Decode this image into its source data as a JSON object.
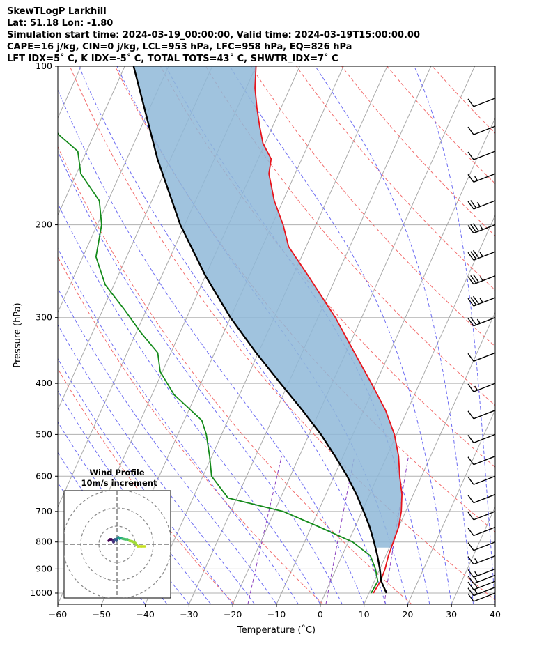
{
  "header": {
    "line1": "SkewTLogP Larkhill",
    "line2": "Lat: 51.18   Lon: -1.80",
    "line3": "Simulation start time: 2024-03-19_00:00:00, Valid time: 2024-03-19T15:00:00.00",
    "line4": "CAPE=16 j/kg, CIN=0 j/kg, LCL=953 hPa, LFC=958 hPa, EQ=826 hPa",
    "line5": "LFT IDX=5˚ C, K IDX=-5˚ C, TOTAL TOTS=43˚ C, SHWTR_IDX=7˚ C"
  },
  "chart_data": {
    "type": "skew-t log-p",
    "xlabel": "Temperature (˚C)",
    "ylabel": "Pressure (hPa)",
    "xlim": [
      -60,
      40
    ],
    "ylim": [
      1050,
      100
    ],
    "x_ticks": [
      "−60",
      "−50",
      "−40",
      "−30",
      "−20",
      "−10",
      "0",
      "10",
      "20",
      "30",
      "40"
    ],
    "y_ticks": [
      "100",
      "200",
      "300",
      "400",
      "500",
      "600",
      "700",
      "800",
      "900",
      "1000"
    ],
    "y_tick_values": [
      100,
      200,
      300,
      400,
      500,
      600,
      700,
      800,
      900,
      1000
    ],
    "log_pressure_axis": true,
    "grid": true,
    "colors": {
      "temperature": "#e8141c",
      "dewpoint": "#138a1a",
      "parcel": "#000000",
      "cape_fill": "#8fb8d8",
      "dry_adiabats": "#f26b6b",
      "moist_adiabats": "#6b6bf2",
      "mixing_ratio": "#8a3fbf",
      "isotherms": "#a9a9a9"
    },
    "series": [
      {
        "role": "temperature",
        "points": [
          [
            1000,
            11
          ],
          [
            950,
            11.4
          ],
          [
            900,
            11.2
          ],
          [
            850,
            10.6
          ],
          [
            800,
            10.3
          ],
          [
            750,
            10.0
          ],
          [
            700,
            9.0
          ],
          [
            650,
            7.4
          ],
          [
            600,
            5.0
          ],
          [
            550,
            2.7
          ],
          [
            500,
            -0.5
          ],
          [
            450,
            -5.0
          ],
          [
            400,
            -11.0
          ],
          [
            350,
            -18.0
          ],
          [
            300,
            -26.0
          ],
          [
            250,
            -36.5
          ],
          [
            220,
            -44.0
          ],
          [
            200,
            -47.5
          ],
          [
            180,
            -52.0
          ],
          [
            160,
            -56.0
          ],
          [
            150,
            -57.0
          ],
          [
            140,
            -60.5
          ],
          [
            130,
            -63.0
          ],
          [
            120,
            -65.5
          ],
          [
            110,
            -68.0
          ],
          [
            100,
            -70.0
          ]
        ]
      },
      {
        "role": "dewpoint",
        "points": [
          [
            1000,
            10.5
          ],
          [
            950,
            10.8
          ],
          [
            900,
            9.0
          ],
          [
            850,
            6.5
          ],
          [
            800,
            1.0
          ],
          [
            750,
            -8.0
          ],
          [
            700,
            -18.0
          ],
          [
            660,
            -32.0
          ],
          [
            600,
            -38.0
          ],
          [
            550,
            -40.5
          ],
          [
            500,
            -43.5
          ],
          [
            470,
            -46.0
          ],
          [
            420,
            -55.0
          ],
          [
            380,
            -60.5
          ],
          [
            350,
            -63.0
          ],
          [
            320,
            -69.0
          ],
          [
            290,
            -75.0
          ],
          [
            260,
            -82.0
          ],
          [
            230,
            -87.0
          ],
          [
            200,
            -89.0
          ],
          [
            180,
            -92.0
          ],
          [
            160,
            -99.0
          ],
          [
            145,
            -102.0
          ],
          [
            135,
            -108.0
          ],
          [
            120,
            -115.0
          ],
          [
            100,
            -128.0
          ]
        ]
      },
      {
        "role": "parcel",
        "points": [
          [
            1000,
            14.0
          ],
          [
            950,
            11.6
          ],
          [
            900,
            10.0
          ],
          [
            850,
            8.1
          ],
          [
            800,
            5.9
          ],
          [
            750,
            3.4
          ],
          [
            700,
            0.4
          ],
          [
            650,
            -3.0
          ],
          [
            600,
            -7.0
          ],
          [
            550,
            -11.8
          ],
          [
            500,
            -17.3
          ],
          [
            450,
            -24.0
          ],
          [
            400,
            -31.8
          ],
          [
            350,
            -40.5
          ],
          [
            300,
            -50.0
          ],
          [
            250,
            -60.0
          ],
          [
            200,
            -71.0
          ],
          [
            150,
            -83.0
          ],
          [
            100,
            -98.0
          ]
        ]
      }
    ],
    "wind_barbs": [
      {
        "p": 1000,
        "speed_kt": 10
      },
      {
        "p": 975,
        "speed_kt": 15
      },
      {
        "p": 950,
        "speed_kt": 15
      },
      {
        "p": 925,
        "speed_kt": 15
      },
      {
        "p": 900,
        "speed_kt": 15
      },
      {
        "p": 850,
        "speed_kt": 15
      },
      {
        "p": 800,
        "speed_kt": 10
      },
      {
        "p": 750,
        "speed_kt": 10
      },
      {
        "p": 700,
        "speed_kt": 10
      },
      {
        "p": 650,
        "speed_kt": 10
      },
      {
        "p": 600,
        "speed_kt": 10
      },
      {
        "p": 550,
        "speed_kt": 10
      },
      {
        "p": 500,
        "speed_kt": 10
      },
      {
        "p": 450,
        "speed_kt": 10
      },
      {
        "p": 400,
        "speed_kt": 15
      },
      {
        "p": 350,
        "speed_kt": 10
      },
      {
        "p": 300,
        "speed_kt": 25
      },
      {
        "p": 275,
        "speed_kt": 35
      },
      {
        "p": 250,
        "speed_kt": 35
      },
      {
        "p": 225,
        "speed_kt": 35
      },
      {
        "p": 200,
        "speed_kt": 35
      },
      {
        "p": 180,
        "speed_kt": 25
      },
      {
        "p": 160,
        "speed_kt": 15
      },
      {
        "p": 145,
        "speed_kt": 10
      },
      {
        "p": 130,
        "speed_kt": 10
      },
      {
        "p": 115,
        "speed_kt": 10
      }
    ],
    "inset": {
      "title": "Wind Profile",
      "subtitle": "10m/s increment",
      "hodograph": [
        [
          -12,
          5
        ],
        [
          -10,
          7
        ],
        [
          -8,
          7
        ],
        [
          -6,
          5
        ],
        [
          -5,
          3
        ],
        [
          -4,
          6
        ],
        [
          -3,
          7
        ],
        [
          -1,
          5
        ],
        [
          0,
          7
        ],
        [
          1,
          9
        ],
        [
          2,
          10
        ],
        [
          3,
          9
        ],
        [
          4,
          8
        ],
        [
          5,
          9
        ],
        [
          8,
          8
        ],
        [
          12,
          7
        ],
        [
          15,
          7
        ],
        [
          18,
          5
        ],
        [
          22,
          4
        ],
        [
          26,
          2
        ],
        [
          30,
          -3
        ],
        [
          35,
          -3
        ],
        [
          40,
          -3
        ]
      ]
    }
  }
}
